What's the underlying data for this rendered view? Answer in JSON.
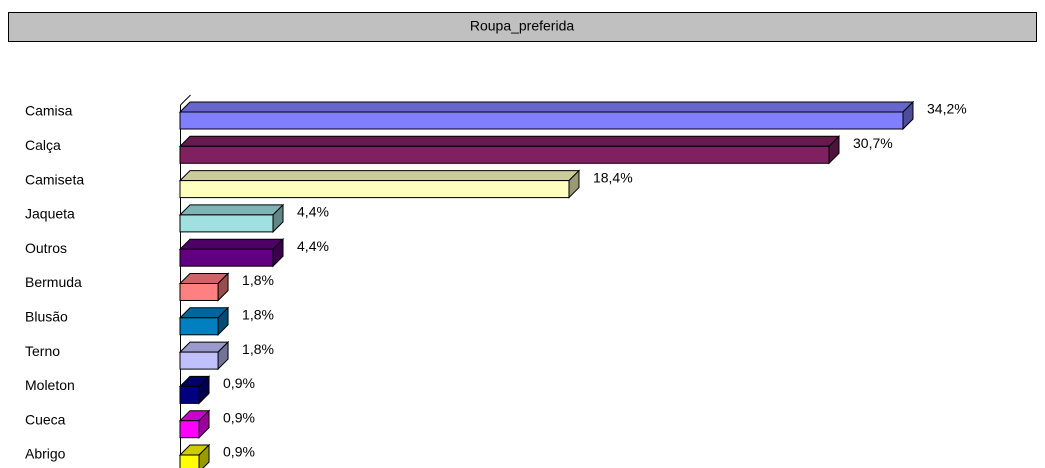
{
  "chart_data": {
    "type": "bar",
    "orientation": "horizontal",
    "title": "Roupa_preferida",
    "categories": [
      "Camisa",
      "Calça",
      "Camiseta",
      "Jaqueta",
      "Outros",
      "Bermuda",
      "Blusão",
      "Terno",
      "Moleton",
      "Cueca",
      "Abrigo"
    ],
    "values": [
      34.2,
      30.7,
      18.4,
      4.4,
      4.4,
      1.8,
      1.8,
      1.8,
      0.9,
      0.9,
      0.9
    ],
    "value_labels": [
      "34,2%",
      "30,7%",
      "18,4%",
      "4,4%",
      "4,4%",
      "1,8%",
      "1,8%",
      "1,8%",
      "0,9%",
      "0,9%",
      "0,9%"
    ],
    "colors": [
      "#8080ff",
      "#802060",
      "#ffffc0",
      "#a0e0e0",
      "#600080",
      "#ff8080",
      "#0080c0",
      "#c0c0ff",
      "#000080",
      "#ff00ff",
      "#ffff00"
    ]
  }
}
